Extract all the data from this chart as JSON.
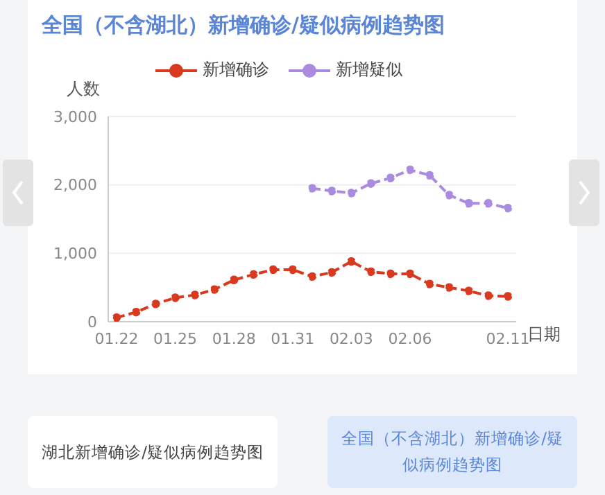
{
  "chart_data": {
    "type": "line",
    "title": "全国（不含湖北）新增确诊/疑似病例趋势图",
    "ylabel": "人数",
    "xlabel": "日期",
    "categories": [
      "01.22",
      null,
      null,
      "01.25",
      null,
      null,
      "01.28",
      null,
      null,
      "01.31",
      null,
      null,
      "02.03",
      null,
      null,
      "02.06",
      null,
      null,
      null,
      null,
      "02.11"
    ],
    "series": [
      {
        "name": "新增确诊",
        "color": "#d9391f",
        "values": [
          60,
          140,
          260,
          350,
          390,
          470,
          610,
          690,
          760,
          760,
          660,
          720,
          880,
          730,
          700,
          700,
          550,
          500,
          450,
          380,
          370
        ]
      },
      {
        "name": "新增疑似",
        "color": "#a98be0",
        "values": [
          null,
          null,
          null,
          null,
          null,
          null,
          null,
          null,
          null,
          null,
          1950,
          1910,
          1880,
          2020,
          2100,
          2220,
          2140,
          1850,
          1730,
          1730,
          1660
        ]
      }
    ],
    "ylim": [
      0,
      3000
    ],
    "yticks": [
      0,
      {
        "value": 1000,
        "label": "1,000"
      },
      {
        "value": 2000,
        "label": "2,000"
      },
      {
        "value": 3000,
        "label": "3,000"
      }
    ],
    "grid": "y",
    "legend": "top",
    "marker": "circle",
    "line_style": "dashed",
    "annotations": [
      "湖北新增确诊/疑似病例趋势图",
      "全国（不含湖北）新增确诊/疑似病例趋势图"
    ]
  }
}
